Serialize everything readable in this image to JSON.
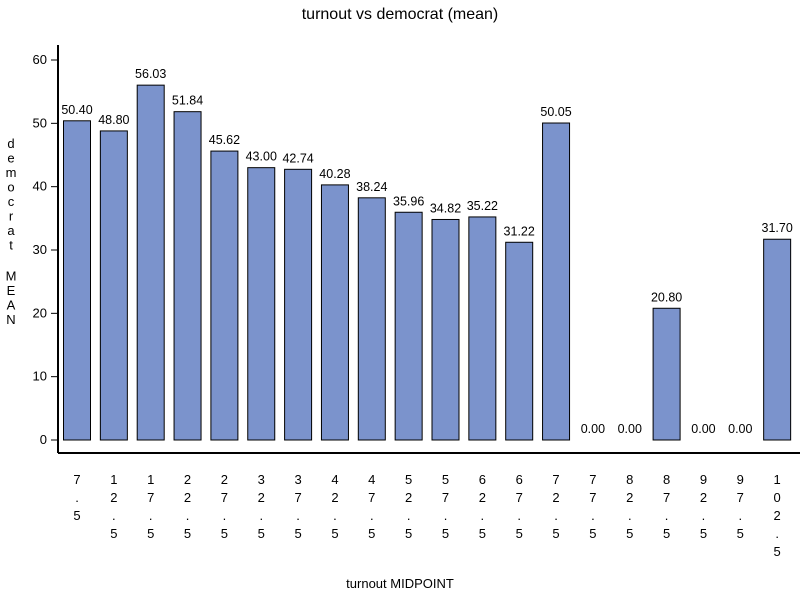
{
  "chart_data": {
    "type": "bar",
    "title": "turnout vs democrat (mean)",
    "xlabel": "turnout MIDPOINT",
    "ylabel": "democrat MEAN",
    "categories": [
      "7.5",
      "12.5",
      "17.5",
      "22.5",
      "27.5",
      "32.5",
      "37.5",
      "42.5",
      "47.5",
      "52.5",
      "57.5",
      "62.5",
      "67.5",
      "72.5",
      "77.5",
      "82.5",
      "87.5",
      "92.5",
      "97.5",
      "102.5"
    ],
    "values": [
      50.4,
      48.8,
      56.03,
      51.84,
      45.62,
      43.0,
      42.74,
      40.28,
      38.24,
      35.96,
      34.82,
      35.22,
      31.22,
      50.05,
      0.0,
      0.0,
      20.8,
      0.0,
      0.0,
      31.7
    ],
    "value_labels": [
      "50.40",
      "48.80",
      "56.03",
      "51.84",
      "45.62",
      "43.00",
      "42.74",
      "40.28",
      "38.24",
      "35.96",
      "34.82",
      "35.22",
      "31.22",
      "50.05",
      "0.00",
      "0.00",
      "20.80",
      "0.00",
      "0.00",
      "31.70"
    ],
    "yticks": [
      0,
      10,
      20,
      30,
      40,
      50,
      60
    ],
    "ylim": [
      0,
      60
    ],
    "grid": false,
    "legend": "none",
    "bar_color": "#7b93cc"
  }
}
